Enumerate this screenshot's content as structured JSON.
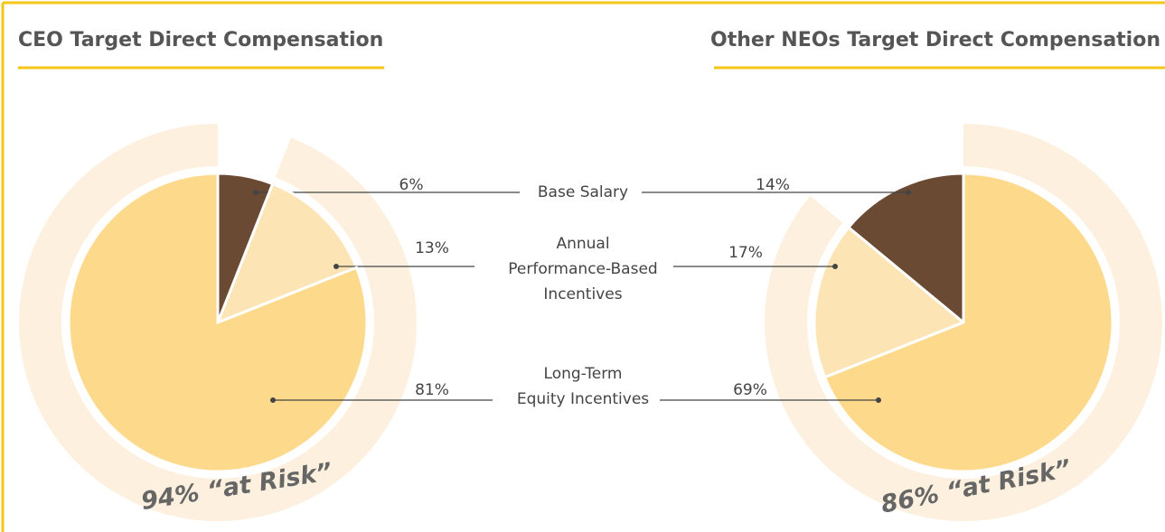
{
  "legend": [
    "Base Salary",
    "Annual\nPerformance-Based\nIncentives",
    "Long-Term\nEquity Incentives"
  ],
  "chart_data": [
    {
      "type": "pie",
      "title": "CEO Target Direct Compensation",
      "values": [
        6,
        13,
        81
      ],
      "value_labels": [
        "6%",
        "13%",
        "81%"
      ],
      "colors": [
        "#6b4a33",
        "#fde4b5",
        "#fdd98b"
      ],
      "order": [
        0,
        1,
        2
      ],
      "annotation": "94% “at Risk”"
    },
    {
      "type": "pie",
      "title": "Other NEOs Target Direct Compensation",
      "values": [
        14,
        17,
        69
      ],
      "value_labels": [
        "14%",
        "17%",
        "69%"
      ],
      "colors": [
        "#6b4a33",
        "#fde4b5",
        "#fdd98b"
      ],
      "order": [
        2,
        1,
        0
      ],
      "annotation": "86% “at Risk”"
    }
  ]
}
